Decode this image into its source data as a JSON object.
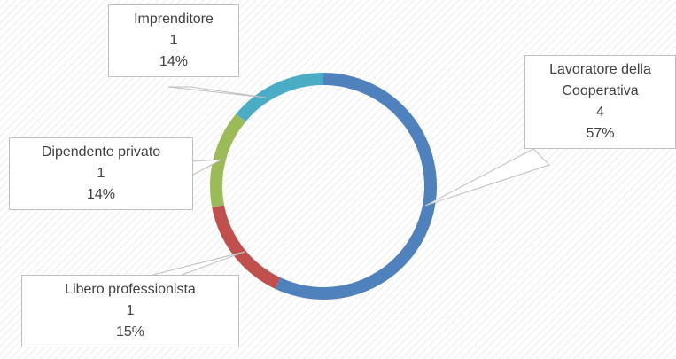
{
  "chart_data": {
    "type": "donut",
    "categories": [
      "Lavoratore della Cooperativa",
      "Libero professionista",
      "Dipendente privato",
      "Imprenditore"
    ],
    "values": [
      4,
      1,
      1,
      1
    ],
    "percentages": [
      57,
      15,
      14,
      14
    ],
    "percentage_labels": [
      "57%",
      "15%",
      "14%",
      "14%"
    ],
    "colors": [
      "#4f81bd",
      "#c0504d",
      "#9bbb59",
      "#4bacc6"
    ]
  }
}
